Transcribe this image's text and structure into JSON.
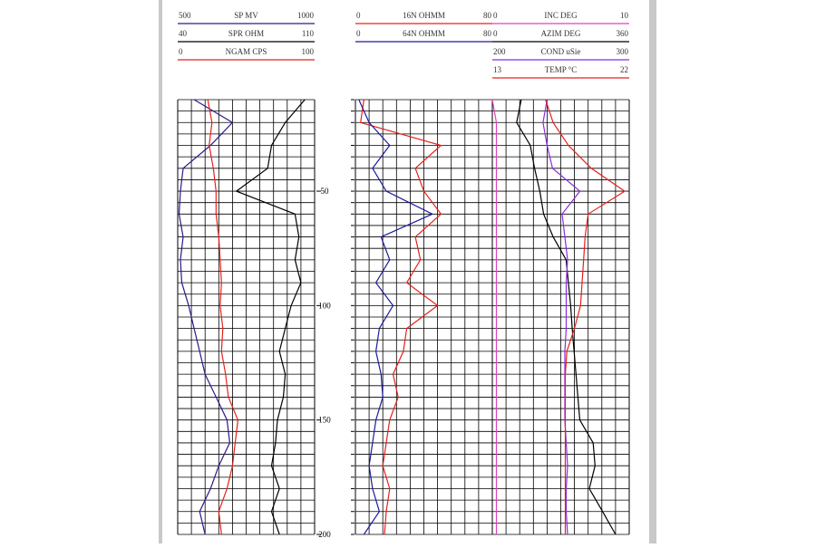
{
  "chart_data": {
    "type": "well_log",
    "ylim": [
      10,
      200
    ],
    "yticks": [
      50,
      100,
      150,
      200
    ],
    "ygrid": [
      10,
      15,
      20,
      25,
      30,
      35,
      40,
      45,
      50,
      55,
      60,
      65,
      70,
      75,
      80,
      85,
      90,
      95,
      100,
      105,
      110,
      115,
      120,
      125,
      130,
      135,
      140,
      145,
      150,
      155,
      160,
      165,
      170,
      175,
      180,
      185,
      190,
      195,
      200
    ],
    "depth": [
      10,
      20,
      30,
      40,
      50,
      60,
      70,
      80,
      90,
      100,
      110,
      120,
      130,
      140,
      150,
      160,
      170,
      180,
      190,
      200
    ],
    "tracks": [
      {
        "series": [
          {
            "name": "SP MV",
            "color": "#2a1a8c",
            "xlim": [
              500,
              1000
            ],
            "values": [
              560,
              700,
              620,
              520,
              510,
              505,
              520,
              510,
              515,
              540,
              560,
              580,
              600,
              640,
              680,
              690,
              650,
              620,
              580,
              600
            ]
          },
          {
            "name": "SPR OHM",
            "color": "#000000",
            "xlim": [
              40,
              110
            ],
            "values": [
              105,
              95,
              88,
              86,
              70,
              100,
              102,
              100,
              103,
              98,
              95,
              92,
              95,
              94,
              91,
              90,
              88,
              92,
              88,
              92
            ]
          },
          {
            "name": "NGAM CPS",
            "color": "#e8201a",
            "xlim": [
              0,
              100
            ],
            "values": [
              22,
              25,
              23,
              26,
              28,
              28,
              30,
              31,
              32,
              31,
              33,
              32,
              35,
              37,
              44,
              42,
              40,
              36,
              30,
              32
            ]
          }
        ]
      },
      {
        "series": [
          {
            "name": "16N OHMM",
            "color": "#e8201a",
            "xlim": [
              0,
              80
            ],
            "values": [
              5,
              3,
              50,
              35,
              40,
              50,
              35,
              38,
              30,
              48,
              30,
              28,
              22,
              25,
              20,
              18,
              16,
              20,
              18,
              17
            ]
          },
          {
            "name": "64N OHMM",
            "color": "#1a1a9c",
            "xlim": [
              0,
              80
            ],
            "values": [
              2,
              8,
              20,
              10,
              18,
              45,
              15,
              20,
              12,
              22,
              14,
              12,
              15,
              16,
              12,
              10,
              8,
              10,
              14,
              5
            ]
          }
        ]
      },
      {
        "series": [
          {
            "name": "INC DEG",
            "color": "#e040c0",
            "xlim": [
              0,
              10
            ],
            "values": [
              0,
              0.3,
              0.3,
              0.3,
              0.3,
              0.3,
              0.3,
              0.3,
              0.3,
              0.3,
              0.3,
              0.3,
              0.3,
              0.3,
              0.3,
              0.3,
              0.3,
              0.3,
              0.3,
              0.3
            ]
          },
          {
            "name": "AZIM DEG",
            "color": "#000000",
            "xlim": [
              0,
              360
            ],
            "values": [
              76,
              64,
              100,
              111,
              125,
              135,
              160,
              194,
              200,
              206,
              210,
              215,
              220,
              225,
              230,
              265,
              270,
              255,
              290,
              324
            ]
          },
          {
            "name": "COND uSie",
            "color": "#8a2be2",
            "xlim": [
              200,
              300
            ],
            "values": [
              240,
              237,
              240,
              244,
              264,
              251,
              253,
              255,
              254,
              254,
              254,
              253,
              253,
              253,
              253,
              254,
              255,
              254,
              254,
              255
            ]
          },
          {
            "name": "TEMP °C",
            "color": "#e8201a",
            "xlim": [
              13,
              22
            ],
            "values": [
              16.5,
              17,
              18,
              19.5,
              21.7,
              19.3,
              19.1,
              19,
              18.9,
              18.8,
              18.4,
              17.9,
              17.8,
              17.8,
              17.8,
              17.8,
              17.8,
              17.8,
              17.8,
              17.8
            ]
          }
        ]
      }
    ]
  }
}
